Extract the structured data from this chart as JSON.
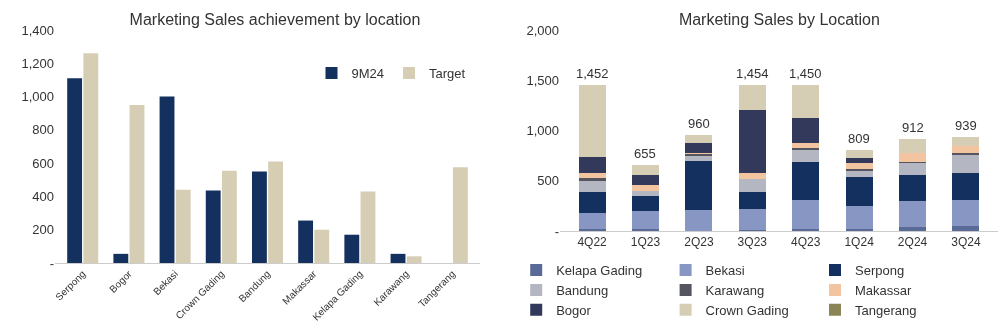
{
  "chart_data": [
    {
      "type": "bar",
      "title": "Marketing Sales achievement by location",
      "categories": [
        "Serpong",
        "Bogor",
        "Bekasi",
        "Crown Gading",
        "Bandung",
        "Makassar",
        "Kelapa Gading",
        "Karawang",
        "Tangerang"
      ],
      "series": [
        {
          "name": "9M24",
          "color": "#14305e",
          "values": [
            1110,
            55,
            1000,
            435,
            550,
            255,
            170,
            55,
            null
          ]
        },
        {
          "name": "Target",
          "color": "#d6ceb4",
          "values": [
            1260,
            950,
            440,
            555,
            610,
            200,
            430,
            40,
            575
          ]
        }
      ],
      "ylim": [
        0,
        1400
      ],
      "yticks": [
        {
          "value": 0,
          "label": "-"
        },
        {
          "value": 200,
          "label": "200"
        },
        {
          "value": 400,
          "label": "400"
        },
        {
          "value": 600,
          "label": "600"
        },
        {
          "value": 800,
          "label": "800"
        },
        {
          "value": 1000,
          "label": "1,000"
        },
        {
          "value": 1200,
          "label": "1,200"
        },
        {
          "value": 1400,
          "label": "1,400"
        }
      ],
      "legend": "top right"
    },
    {
      "type": "bar",
      "title": "Marketing Sales by Location",
      "stacked": true,
      "categories": [
        "4Q22",
        "1Q23",
        "2Q23",
        "3Q23",
        "4Q23",
        "1Q24",
        "2Q24",
        "3Q24"
      ],
      "series": [
        {
          "name": "Kelapa Gading",
          "color": "#5a6a96",
          "values": [
            15,
            15,
            5,
            10,
            15,
            15,
            38,
            53
          ]
        },
        {
          "name": "Bekasi",
          "color": "#8796c3",
          "values": [
            163,
            182,
            201,
            206,
            291,
            232,
            256,
            256
          ]
        },
        {
          "name": "Serpong",
          "color": "#14305e",
          "values": [
            212,
            156,
            488,
            174,
            378,
            291,
            259,
            269
          ]
        },
        {
          "name": "Bandung",
          "color": "#b4b6c2",
          "values": [
            110,
            47,
            50,
            132,
            119,
            62,
            119,
            181
          ]
        },
        {
          "name": "Karawang",
          "color": "#555560",
          "values": [
            25,
            null,
            22,
            0,
            19,
            16,
            16,
            19
          ]
        },
        {
          "name": "Makassar",
          "color": "#f2c4a0",
          "values": [
            53,
            53,
            12,
            56,
            50,
            62,
            84,
            66
          ]
        },
        {
          "name": "Bogor",
          "color": "#33395a",
          "values": [
            162,
            100,
            94,
            625,
            253,
            53,
            0,
            0
          ]
        },
        {
          "name": "Crown Gading",
          "color": "#d6ceb4",
          "values": [
            712,
            102,
            88,
            251,
            325,
            78,
            140,
            95
          ]
        },
        {
          "name": "Tangerang",
          "color": "#8a8456",
          "values": [
            0,
            0,
            0,
            0,
            0,
            0,
            0,
            0
          ]
        }
      ],
      "totals": [
        "1,452",
        "655",
        "960",
        "1,454",
        "1,450",
        "809",
        "912",
        "939"
      ],
      "ylim": [
        0,
        2000
      ],
      "yticks": [
        {
          "value": 0,
          "label": "-"
        },
        {
          "value": 500,
          "label": "500"
        },
        {
          "value": 1000,
          "label": "1,000"
        },
        {
          "value": 1500,
          "label": "1,500"
        },
        {
          "value": 2000,
          "label": "2,000"
        }
      ],
      "legend": "bottom"
    }
  ]
}
